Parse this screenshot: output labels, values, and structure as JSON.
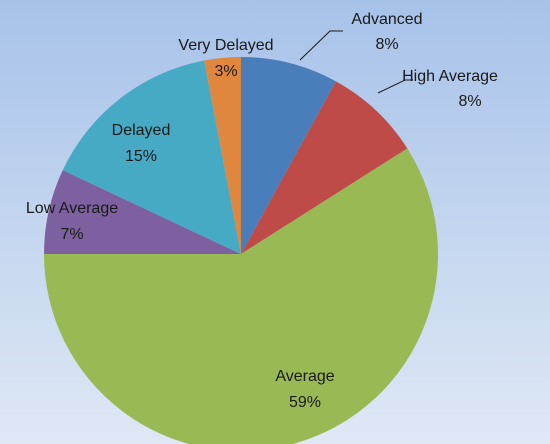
{
  "chart_data": {
    "type": "pie",
    "categories": [
      "Advanced",
      "High Average",
      "Average",
      "Low Average",
      "Delayed",
      "Very Delayed"
    ],
    "values": [
      8,
      8,
      59,
      7,
      15,
      3
    ],
    "value_labels": [
      "8%",
      "8%",
      "59%",
      "7%",
      "15%",
      "3%"
    ],
    "colors": [
      "#4a7ebb",
      "#be4b48",
      "#98b954",
      "#7d60a0",
      "#46aac5",
      "#e0873f"
    ],
    "start_angle": 0,
    "direction": "clockwise"
  }
}
